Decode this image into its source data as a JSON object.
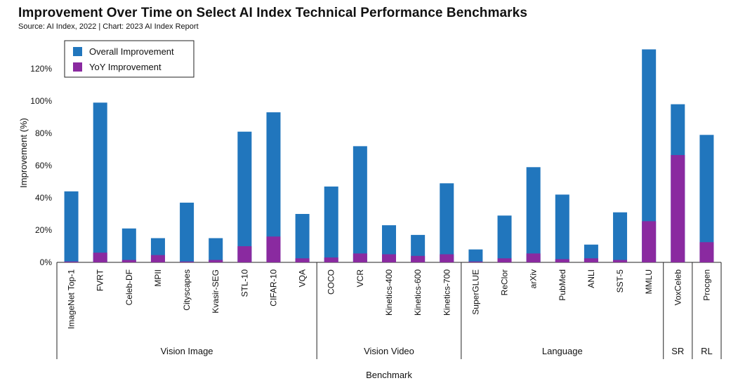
{
  "title": "Improvement Over Time on Select AI Index Technical Performance Benchmarks",
  "subtitle": "Source: AI Index, 2022 | Chart: 2023 AI Index Report",
  "colors": {
    "overall": "#2176bd",
    "yoy": "#8a2aa0",
    "axis": "#222222"
  },
  "chart_data": {
    "type": "bar",
    "stacked": "overlay",
    "title": "Improvement Over Time on Select AI Index Technical Performance Benchmarks",
    "xlabel": "Benchmark",
    "ylabel": "Improvement (%)",
    "ylim": [
      0,
      140
    ],
    "yticks": [
      0,
      20,
      40,
      60,
      80,
      100,
      120
    ],
    "ytick_labels": [
      "0%",
      "20%",
      "40%",
      "60%",
      "80%",
      "100%",
      "120%"
    ],
    "legend": {
      "position": "top-left",
      "entries": [
        "Overall Improvement",
        "YoY Improvement"
      ]
    },
    "categories": [
      "ImageNet Top-1",
      "FVRT",
      "Celeb-DF",
      "MPII",
      "Cityscapes",
      "Kvasir-SEG",
      "STL-10",
      "CIFAR-10",
      "VQA",
      "COCO",
      "VCR",
      "Kinetics-400",
      "Kinetics-600",
      "Kinetics-700",
      "SuperGLUE",
      "ReClor",
      "arXiv",
      "PubMed",
      "ANLI",
      "SST-5",
      "MMLU",
      "VoxCeleb",
      "Procgen"
    ],
    "series": [
      {
        "name": "Overall Improvement",
        "values": [
          44,
          99,
          21,
          15,
          37,
          15,
          81,
          93,
          30,
          47,
          72,
          23,
          17,
          49,
          8,
          29,
          59,
          42,
          11,
          31,
          132,
          98,
          79
        ]
      },
      {
        "name": "YoY Improvement",
        "values": [
          0.5,
          6,
          1.5,
          4.5,
          0.5,
          1.5,
          10,
          16,
          2.5,
          3,
          5.5,
          5,
          4,
          5,
          0.5,
          2.5,
          5.5,
          2,
          2.5,
          1.5,
          25.5,
          66.5,
          12.5
        ]
      }
    ],
    "groups": [
      {
        "label": "Vision Image",
        "count": 9
      },
      {
        "label": "Vision Video",
        "count": 5
      },
      {
        "label": "Language",
        "count": 7
      },
      {
        "label": "SR",
        "count": 1
      },
      {
        "label": "RL",
        "count": 1
      }
    ]
  }
}
